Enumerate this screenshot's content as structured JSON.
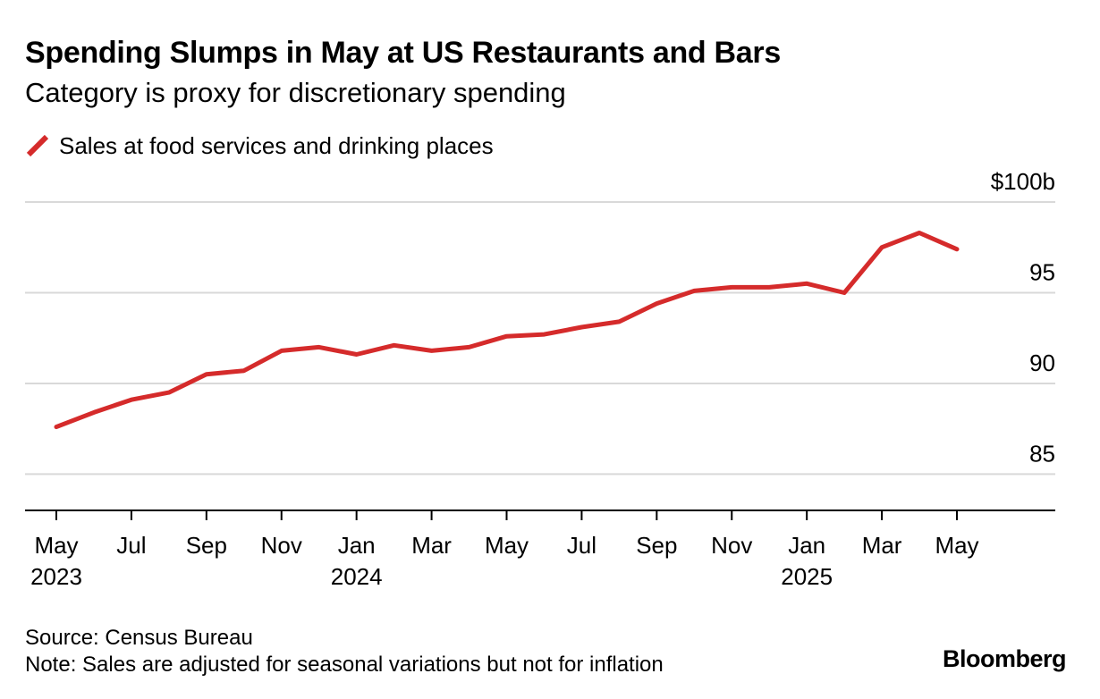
{
  "header": {
    "title": "Spending Slumps in May at US Restaurants and Bars",
    "subtitle": "Category is proxy for discretionary spending"
  },
  "legend": {
    "label": "Sales at food services and drinking places"
  },
  "footer": {
    "source": "Source: Census Bureau",
    "note": "Note: Sales are adjusted for seasonal variations but not for inflation",
    "brand": "Bloomberg"
  },
  "colors": {
    "series": "#d52b2b",
    "grid": "#d9d9d9",
    "axis": "#000000"
  },
  "chart_data": {
    "type": "line",
    "title": "Spending Slumps in May at US Restaurants and Bars",
    "subtitle": "Category is proxy for discretionary spending",
    "xlabel": "",
    "ylabel": "",
    "ylim": [
      83,
      100
    ],
    "grid": true,
    "legend_position": "top-left",
    "y_axis_position": "right",
    "y_ticks": [
      {
        "value": 100,
        "label": "$100b"
      },
      {
        "value": 95,
        "label": "95"
      },
      {
        "value": 90,
        "label": "90"
      },
      {
        "value": 85,
        "label": "85"
      }
    ],
    "x_ticks": [
      {
        "index": 0,
        "label": "May",
        "year": "2023"
      },
      {
        "index": 2,
        "label": "Jul",
        "year": ""
      },
      {
        "index": 4,
        "label": "Sep",
        "year": ""
      },
      {
        "index": 6,
        "label": "Nov",
        "year": ""
      },
      {
        "index": 8,
        "label": "Jan",
        "year": "2024"
      },
      {
        "index": 10,
        "label": "Mar",
        "year": ""
      },
      {
        "index": 12,
        "label": "May",
        "year": ""
      },
      {
        "index": 14,
        "label": "Jul",
        "year": ""
      },
      {
        "index": 16,
        "label": "Sep",
        "year": ""
      },
      {
        "index": 18,
        "label": "Nov",
        "year": ""
      },
      {
        "index": 20,
        "label": "Jan",
        "year": "2025"
      },
      {
        "index": 22,
        "label": "Mar",
        "year": ""
      },
      {
        "index": 24,
        "label": "May",
        "year": ""
      }
    ],
    "series": [
      {
        "name": "Sales at food services and drinking places",
        "x": [
          "2023-05",
          "2023-06",
          "2023-07",
          "2023-08",
          "2023-09",
          "2023-10",
          "2023-11",
          "2023-12",
          "2024-01",
          "2024-02",
          "2024-03",
          "2024-04",
          "2024-05",
          "2024-06",
          "2024-07",
          "2024-08",
          "2024-09",
          "2024-10",
          "2024-11",
          "2024-12",
          "2025-01",
          "2025-02",
          "2025-03",
          "2025-04",
          "2025-05"
        ],
        "values": [
          87.6,
          88.4,
          89.1,
          89.5,
          90.5,
          90.7,
          91.8,
          92.0,
          91.6,
          92.1,
          91.8,
          92.0,
          92.6,
          92.7,
          93.1,
          93.4,
          94.4,
          95.1,
          95.3,
          95.3,
          95.5,
          95.0,
          97.5,
          98.3,
          97.4
        ]
      }
    ]
  }
}
